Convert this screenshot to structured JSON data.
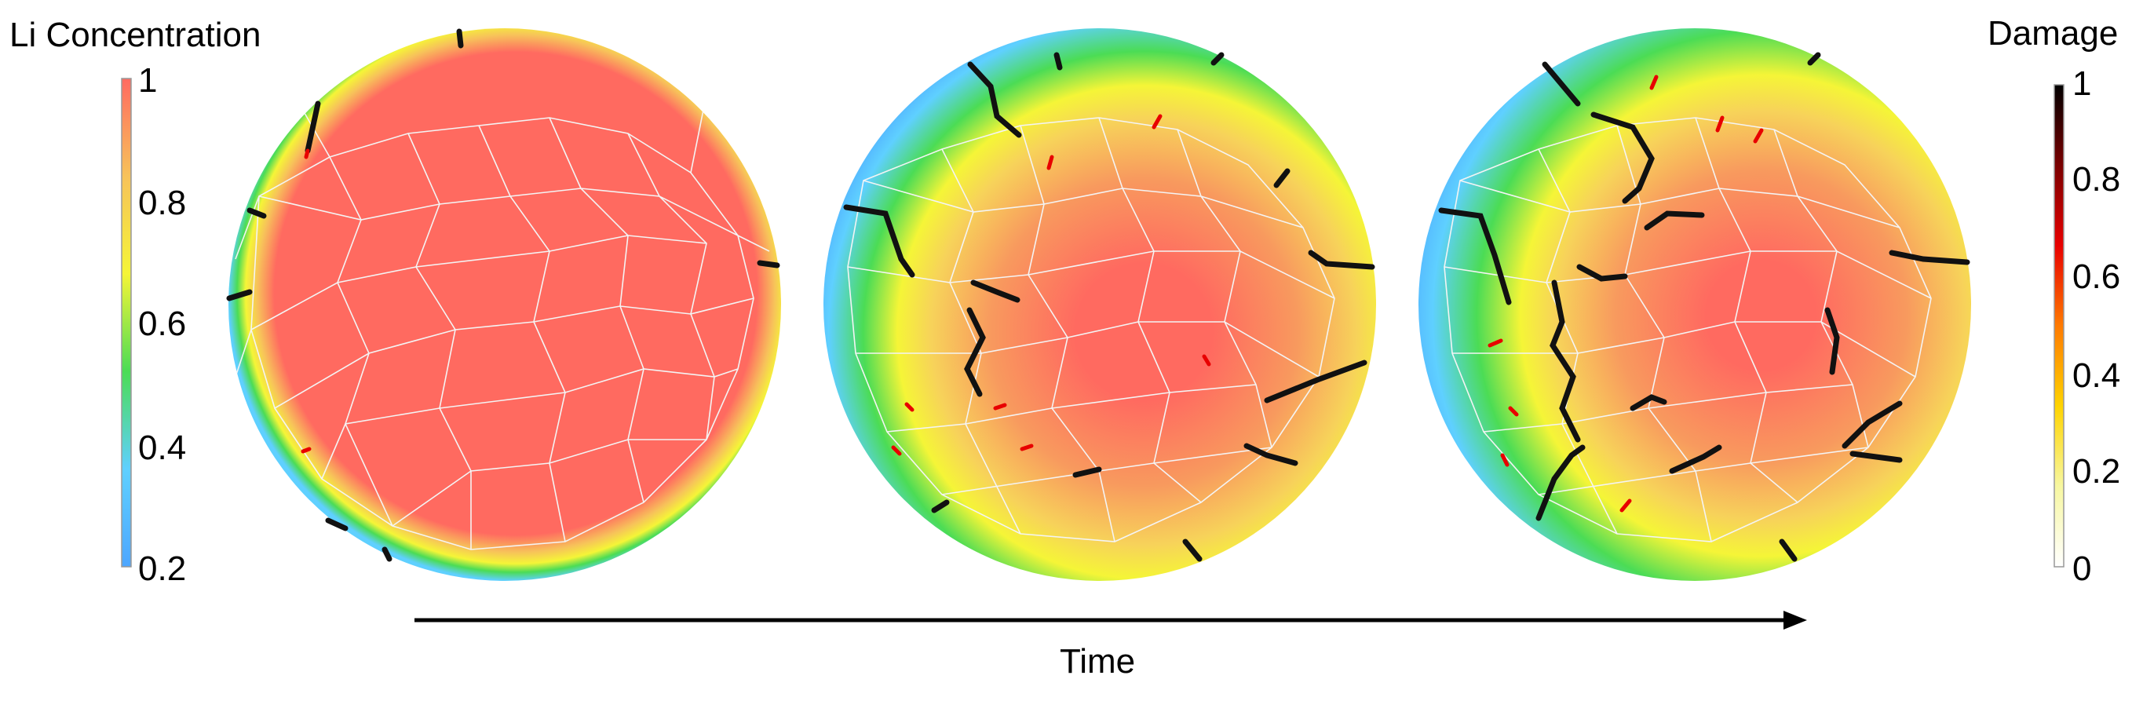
{
  "left_colorbar": {
    "title": "Li Concentration",
    "ticks": [
      "1",
      "0.8",
      "0.6",
      "0.4",
      "0.2"
    ],
    "range": [
      0.2,
      1
    ],
    "colors": [
      "#4da6ff",
      "#5fd0ff",
      "#4bdc55",
      "#f5f537",
      "#f7c25a",
      "#ff6a60"
    ]
  },
  "right_colorbar": {
    "title": "Damage",
    "ticks": [
      "1",
      "0.8",
      "0.6",
      "0.4",
      "0.2",
      "0"
    ],
    "range": [
      0,
      1
    ],
    "colors": [
      "#ffffff",
      "#f7f7a0",
      "#ffd400",
      "#ff7a00",
      "#e80000",
      "#7a0000",
      "#000000"
    ]
  },
  "time_axis": {
    "label": "Time"
  },
  "panels": [
    {
      "name": "early"
    },
    {
      "name": "middle"
    },
    {
      "name": "late"
    }
  ]
}
